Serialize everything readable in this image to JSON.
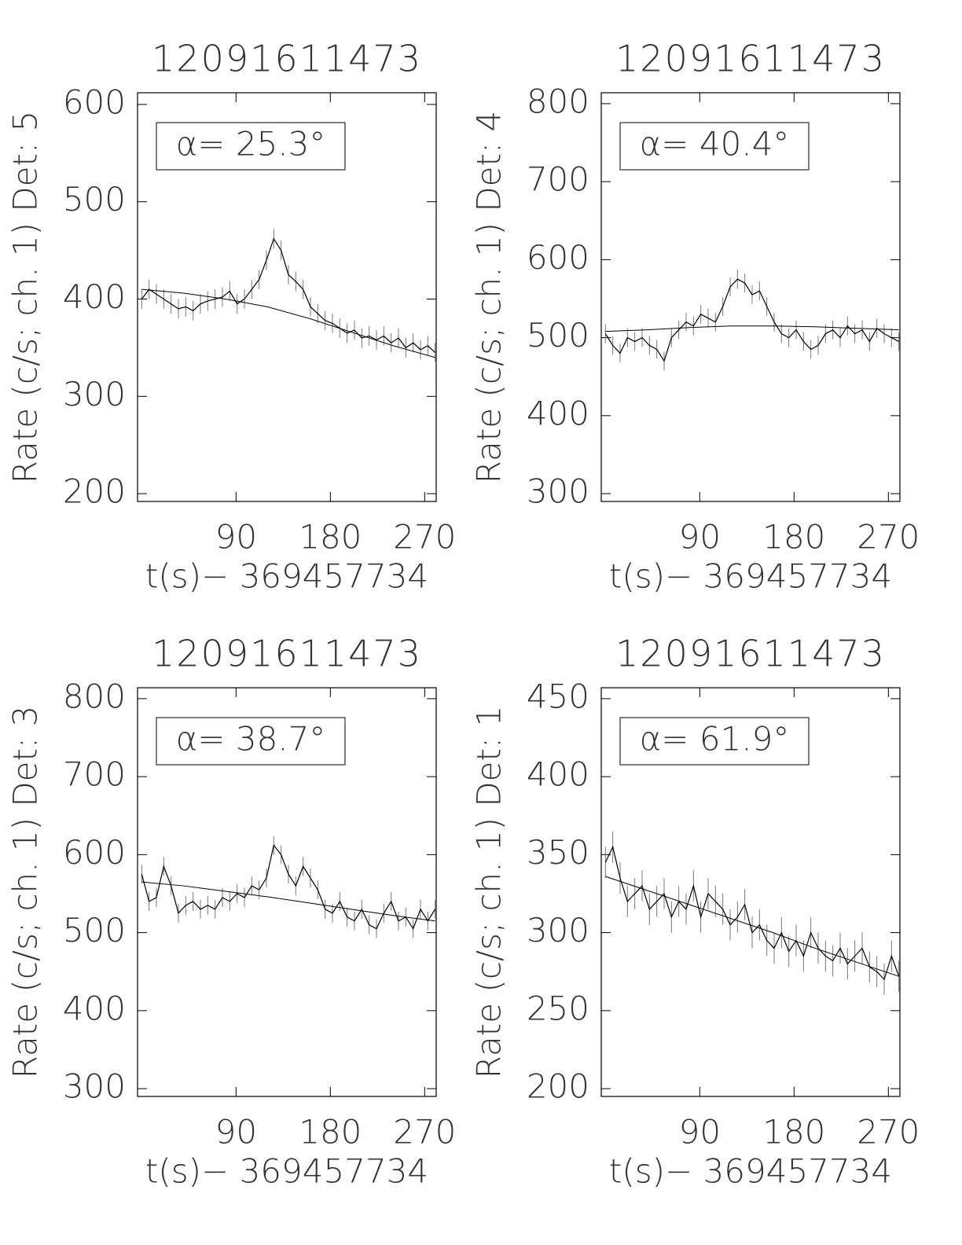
{
  "chart_data": [
    {
      "type": "line",
      "title": "12091611473",
      "ylabel": "Rate (c/s; ch. 1) Det: 5",
      "xlabel": "t(s)− 369457734",
      "annotation": "α= 25.3°",
      "xlim": [
        -4,
        281
      ],
      "ylim": [
        192,
        612
      ],
      "xticks": [
        90,
        180,
        270
      ],
      "yticks": [
        200,
        300,
        400,
        500,
        600
      ],
      "series": [
        {
          "color": "#000000",
          "error": 10,
          "x": [
            0,
            7,
            14,
            21,
            28,
            35,
            42,
            49,
            56,
            63,
            70,
            77,
            84,
            91,
            98,
            105,
            112,
            119,
            126,
            133,
            140,
            147,
            154,
            161,
            168,
            175,
            182,
            189,
            196,
            203,
            210,
            217,
            224,
            231,
            238,
            245,
            252,
            259,
            266,
            273,
            280
          ],
          "values": [
            400,
            410,
            405,
            400,
            395,
            390,
            392,
            388,
            395,
            398,
            400,
            402,
            408,
            395,
            400,
            410,
            420,
            440,
            462,
            450,
            425,
            418,
            410,
            392,
            385,
            378,
            375,
            370,
            365,
            368,
            360,
            362,
            358,
            362,
            355,
            360,
            350,
            355,
            348,
            352,
            345
          ]
        },
        {
          "color": "#000000",
          "x": [
            0,
            40,
            80,
            120,
            160,
            200,
            240,
            280
          ],
          "values": [
            410,
            406,
            400,
            392,
            380,
            366,
            352,
            340
          ]
        }
      ]
    },
    {
      "type": "line",
      "title": "12091611473",
      "ylabel": "Rate (c/s; ch. 1) Det: 4",
      "xlabel": "t(s)− 369457734",
      "annotation": "α= 40.4°",
      "xlim": [
        -4,
        281
      ],
      "ylim": [
        290,
        814
      ],
      "xticks": [
        90,
        180,
        270
      ],
      "yticks": [
        300,
        400,
        500,
        600,
        700,
        800
      ],
      "series": [
        {
          "color": "#000000",
          "error": 12,
          "x": [
            0,
            7,
            14,
            21,
            28,
            35,
            42,
            49,
            56,
            63,
            70,
            77,
            84,
            91,
            98,
            105,
            112,
            119,
            126,
            133,
            140,
            147,
            154,
            161,
            168,
            175,
            182,
            189,
            196,
            203,
            210,
            217,
            224,
            231,
            238,
            245,
            252,
            259,
            266,
            273,
            280
          ],
          "values": [
            505,
            490,
            480,
            500,
            495,
            500,
            490,
            485,
            470,
            500,
            510,
            520,
            515,
            530,
            525,
            520,
            540,
            565,
            575,
            570,
            555,
            560,
            540,
            520,
            505,
            500,
            510,
            495,
            485,
            490,
            505,
            510,
            500,
            515,
            505,
            510,
            495,
            512,
            505,
            500,
            495
          ]
        },
        {
          "color": "#000000",
          "x": [
            0,
            40,
            80,
            120,
            160,
            200,
            240,
            280
          ],
          "values": [
            508,
            510,
            513,
            515,
            515,
            514,
            512,
            510
          ]
        }
      ]
    },
    {
      "type": "line",
      "title": "12091611473",
      "ylabel": "Rate (c/s; ch. 1) Det: 3",
      "xlabel": "t(s)− 369457734",
      "annotation": "α= 38.7°",
      "xlim": [
        -4,
        281
      ],
      "ylim": [
        290,
        814
      ],
      "xticks": [
        90,
        180,
        270
      ],
      "yticks": [
        300,
        400,
        500,
        600,
        700,
        800
      ],
      "series": [
        {
          "color": "#000000",
          "error": 12,
          "x": [
            0,
            7,
            14,
            21,
            28,
            35,
            42,
            49,
            56,
            63,
            70,
            77,
            84,
            91,
            98,
            105,
            112,
            119,
            126,
            133,
            140,
            147,
            154,
            161,
            168,
            175,
            182,
            189,
            196,
            203,
            210,
            217,
            224,
            231,
            238,
            245,
            252,
            259,
            266,
            273,
            280
          ],
          "values": [
            575,
            540,
            545,
            585,
            560,
            525,
            535,
            540,
            530,
            535,
            530,
            545,
            540,
            550,
            545,
            560,
            555,
            570,
            612,
            600,
            575,
            560,
            585,
            570,
            555,
            530,
            525,
            540,
            520,
            515,
            530,
            510,
            505,
            525,
            540,
            515,
            520,
            505,
            530,
            515,
            530
          ]
        },
        {
          "color": "#000000",
          "x": [
            0,
            40,
            80,
            120,
            160,
            200,
            240,
            280
          ],
          "values": [
            565,
            560,
            553,
            546,
            538,
            530,
            522,
            515
          ]
        }
      ]
    },
    {
      "type": "line",
      "title": "12091611473",
      "ylabel": "Rate (c/s; ch. 1) Det: 1",
      "xlabel": "t(s)− 369457734",
      "annotation": "α= 61.9°",
      "xlim": [
        -4,
        281
      ],
      "ylim": [
        195,
        457
      ],
      "xticks": [
        90,
        180,
        270
      ],
      "yticks": [
        200,
        250,
        300,
        350,
        400,
        450
      ],
      "series": [
        {
          "color": "#000000",
          "error": 10,
          "x": [
            0,
            7,
            14,
            21,
            28,
            35,
            42,
            49,
            56,
            63,
            70,
            77,
            84,
            91,
            98,
            105,
            112,
            119,
            126,
            133,
            140,
            147,
            154,
            161,
            168,
            175,
            182,
            189,
            196,
            203,
            210,
            217,
            224,
            231,
            238,
            245,
            252,
            259,
            266,
            273,
            280
          ],
          "values": [
            345,
            355,
            335,
            320,
            325,
            330,
            315,
            320,
            325,
            310,
            320,
            315,
            330,
            310,
            325,
            320,
            315,
            305,
            310,
            318,
            300,
            305,
            295,
            290,
            300,
            288,
            295,
            285,
            300,
            290,
            285,
            282,
            290,
            280,
            285,
            290,
            278,
            275,
            270,
            285,
            272
          ]
        },
        {
          "color": "#000000",
          "x": [
            0,
            40,
            80,
            120,
            160,
            200,
            240,
            280
          ],
          "values": [
            336,
            327,
            318,
            309,
            300,
            290,
            281,
            272
          ]
        }
      ]
    }
  ]
}
